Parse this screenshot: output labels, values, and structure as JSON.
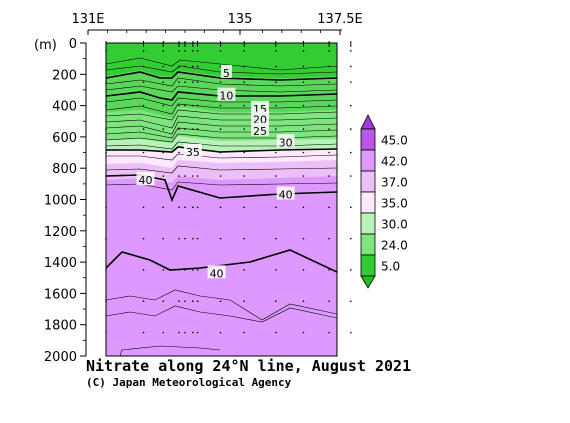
{
  "chart_data": {
    "type": "heatmap",
    "title": "Nitrate along 24°N line, August 2021",
    "credit": "(C) Japan Meteorological Agency",
    "x_axis": {
      "range": [
        131,
        137.5
      ],
      "ticks": [
        {
          "value": 131,
          "label": "131E"
        },
        {
          "value": 135,
          "label": "135"
        },
        {
          "value": 137.5,
          "label": "137.5E"
        }
      ]
    },
    "y_axis": {
      "unit_label": "(m)",
      "range": [
        0,
        2000
      ],
      "inverted": true,
      "ticks": [
        0,
        200,
        400,
        600,
        800,
        1000,
        1200,
        1400,
        1600,
        1800,
        2000
      ]
    },
    "station_longitudes": [
      131.1,
      132.05,
      132.55,
      132.95,
      133.1,
      133.3,
      133.42,
      134.0,
      134.6,
      135.4,
      136.1,
      136.75,
      137.3
    ],
    "legend": {
      "levels": [
        "45.0",
        "42.0",
        "37.0",
        "35.0",
        "30.0",
        "24.0",
        "5.0"
      ],
      "colors": [
        "#bb55e6",
        "#dd99ff",
        "#ecbff9",
        "#fde8fd",
        "#b8f2b8",
        "#7ee47e",
        "#33cc33"
      ]
    },
    "contour_labels": [
      {
        "value": "5",
        "lon": 134.15,
        "depth": 185
      },
      {
        "value": "10",
        "lon": 134.15,
        "depth": 330
      },
      {
        "value": "15",
        "lon": 135.0,
        "depth": 415
      },
      {
        "value": "20",
        "lon": 135.0,
        "depth": 483
      },
      {
        "value": "25",
        "lon": 135.0,
        "depth": 555
      },
      {
        "value": "30",
        "lon": 135.65,
        "depth": 628
      },
      {
        "value": "35",
        "lon": 133.3,
        "depth": 690
      },
      {
        "value": "40",
        "lon": 132.1,
        "depth": 870
      },
      {
        "value": "40",
        "lon": 135.65,
        "depth": 962
      },
      {
        "value": "40",
        "lon": 133.9,
        "depth": 1465
      }
    ]
  }
}
